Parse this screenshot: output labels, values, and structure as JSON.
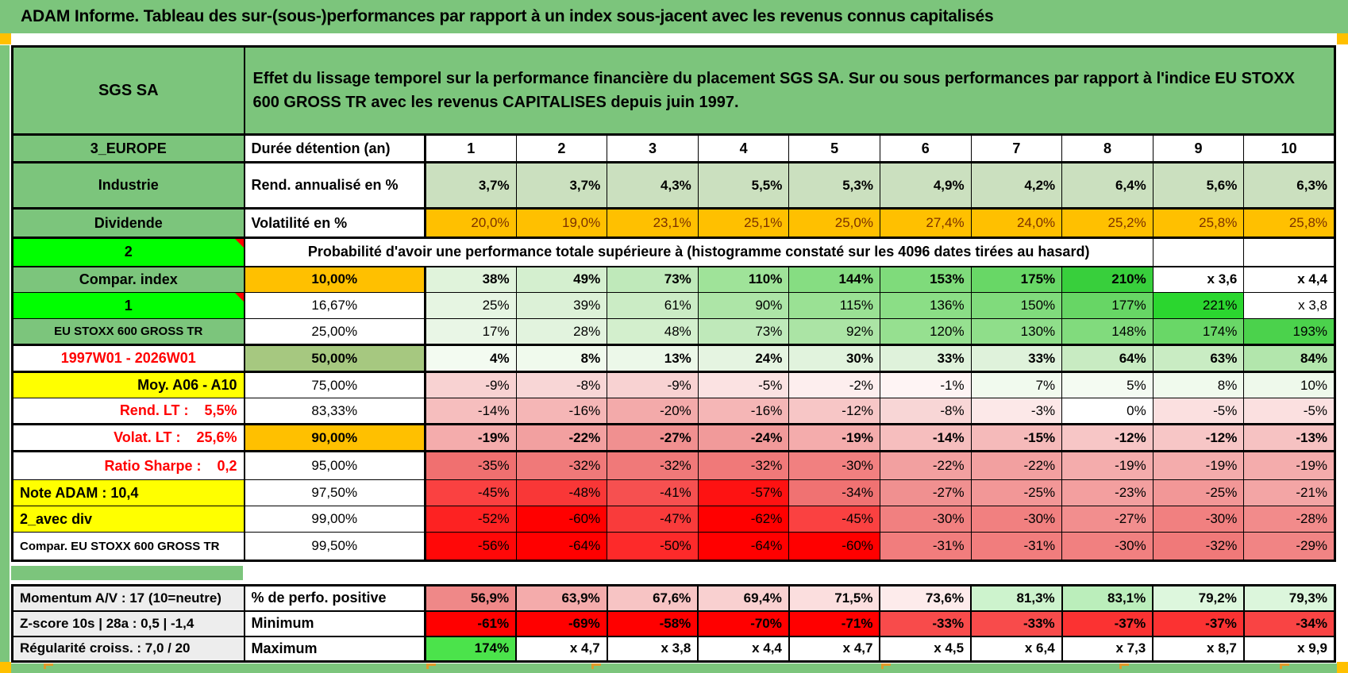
{
  "title": "ADAM Informe. Tableau des sur-(sous-)performances par rapport à un index sous-jacent avec les revenus connus capitalisés",
  "colors": {
    "table_green": "#7CC57C",
    "bright_green": "#00FF00",
    "orange": "#FFC000",
    "yellow": "#FFFF00",
    "sage_green": "#A6C880",
    "row_light_green": "#CBE0BF",
    "gray_label": "#EDEDED",
    "red_text": "#FF0000",
    "volat_text": "#7B3000",
    "pure_red": "#FF0000",
    "max_green": "#4BE34B",
    "marker_orange": "#FFC000"
  },
  "main_rows": [
    {
      "name": "header",
      "left": {
        "text": "SGS SA",
        "bg": "green",
        "fs": 20
      },
      "span": {
        "text": "Effet du lissage temporel sur la performance financière du placement SGS SA. Sur ou sous performances par rapport à l'indice EU STOXX 600 GROSS TR avec les revenus CAPITALISES depuis juin 1997.",
        "colspan": 11,
        "bg": "green",
        "align": "l",
        "fs": 20,
        "wrap": true
      }
    },
    {
      "name": "duree",
      "left": {
        "text": "3_EUROPE",
        "bg": "green"
      },
      "label": {
        "text": "Durée détention (an)",
        "align": "l",
        "fs": 18
      },
      "values": [
        "1",
        "2",
        "3",
        "4",
        "5",
        "6",
        "7",
        "8",
        "9",
        "10"
      ],
      "bg": [
        "#FFFFFF",
        "#FFFFFF",
        "#FFFFFF",
        "#FFFFFF",
        "#FFFFFF",
        "#FFFFFF",
        "#FFFFFF",
        "#FFFFFF",
        "#FFFFFF",
        "#FFFFFF"
      ],
      "bold": true,
      "cellAlign": "c",
      "cellFs": 18
    },
    {
      "name": "rend",
      "left": {
        "text": "Industrie",
        "bg": "green"
      },
      "label": {
        "text": "Rend. annualisé en %",
        "align": "l",
        "fs": 18
      },
      "values": [
        "3,7%",
        "3,7%",
        "4,3%",
        "5,5%",
        "5,3%",
        "4,9%",
        "4,2%",
        "6,4%",
        "5,6%",
        "6,3%"
      ],
      "bg": [
        "lightrow",
        "lightrow",
        "lightrow",
        "lightrow",
        "lightrow",
        "lightrow",
        "lightrow",
        "lightrow",
        "lightrow",
        "lightrow"
      ],
      "bold": true
    },
    {
      "name": "volat",
      "left": {
        "text": "Dividende",
        "bg": "green"
      },
      "label": {
        "text": "Volatilité en %",
        "align": "l",
        "fs": 18
      },
      "values": [
        "20,0%",
        "19,0%",
        "23,1%",
        "25,1%",
        "25,0%",
        "27,4%",
        "24,0%",
        "25,2%",
        "25,8%",
        "25,8%"
      ],
      "bg": [
        "orange",
        "orange",
        "orange",
        "orange",
        "orange",
        "orange",
        "orange",
        "orange",
        "orange",
        "orange"
      ],
      "bold": false,
      "fg": "#7B3000"
    },
    {
      "name": "prob",
      "left": {
        "text": "2",
        "bg": "bright",
        "marker": true
      },
      "span": {
        "text": "Probabilité d'avoir une performance totale supérieure à (histogramme constaté sur les 4096 dates tirées au hasard)",
        "colspan": 9,
        "align": "c",
        "fs": 18
      },
      "trail": 2
    },
    {
      "name": "p10",
      "left": {
        "text": "Compar. index",
        "bg": "green"
      },
      "label": {
        "text": "10,00%",
        "bg": "orange"
      },
      "values": [
        "38%",
        "49%",
        "73%",
        "110%",
        "144%",
        "153%",
        "175%",
        "210%",
        "x 3,6",
        "x 4,4"
      ],
      "bg": [
        "#E0F3DB",
        "#D4EFCF",
        "#BFE9BA",
        "#9FE399",
        "#86DD82",
        "#7FDB7B",
        "#68D766",
        "#38CF3C",
        "#FFFFFF",
        "#FFFFFF"
      ],
      "bold": true
    },
    {
      "name": "p16",
      "left": {
        "text": "1",
        "bg": "bright",
        "marker": true
      },
      "label": {
        "text": "16,67%",
        "bold": false
      },
      "values": [
        "25%",
        "39%",
        "61%",
        "90%",
        "115%",
        "136%",
        "150%",
        "177%",
        "221%",
        "x 3,8"
      ],
      "bg": [
        "#E6F5E2",
        "#DCF1D7",
        "#CBECC5",
        "#ADE5A7",
        "#9AE194",
        "#8BDE86",
        "#80DB7C",
        "#67D665",
        "#2BD62F",
        "#FFFFFF"
      ],
      "bold": false
    },
    {
      "name": "p25",
      "left": {
        "text": "EU STOXX 600 GROSS TR",
        "bg": "green",
        "fs": 15
      },
      "label": {
        "text": "25,00%",
        "bold": false
      },
      "values": [
        "17%",
        "28%",
        "48%",
        "73%",
        "92%",
        "120%",
        "130%",
        "148%",
        "174%",
        "193%"
      ],
      "bg": [
        "#E9F6E6",
        "#E2F3DE",
        "#D3EFCD",
        "#BFE9BA",
        "#ABE4A5",
        "#96E090",
        "#8FDE8A",
        "#81DB7D",
        "#69D767",
        "#4BD24C"
      ],
      "bold": false
    },
    {
      "name": "p50",
      "left": {
        "text": "1997W01 - 2026W01",
        "bg": "#FFFFFF",
        "fg": "#FF0000"
      },
      "label": {
        "text": "50,00%",
        "bg": "sage"
      },
      "values": [
        "4%",
        "8%",
        "13%",
        "24%",
        "30%",
        "33%",
        "33%",
        "64%",
        "63%",
        "84%"
      ],
      "bg": [
        "#F3FBF1",
        "#F0FAED",
        "#ECF8E9",
        "#E5F4E1",
        "#E1F3DD",
        "#DFF2DB",
        "#DFF2DB",
        "#C8EBC2",
        "#C9ECC3",
        "#B2E6AC"
      ],
      "bold": true
    },
    {
      "name": "p75",
      "left": {
        "text": "Moy. A06 - A10",
        "bg": "yellow",
        "align": "r"
      },
      "label": {
        "text": "75,00%",
        "bold": false
      },
      "values": [
        "-9%",
        "-8%",
        "-9%",
        "-5%",
        "-2%",
        "-1%",
        "7%",
        "5%",
        "8%",
        "10%"
      ],
      "bg": [
        "#F8D2D2",
        "#F8D6D6",
        "#F8D2D2",
        "#FBE2E2",
        "#FDEEEE",
        "#FEF4F4",
        "#F1FAEE",
        "#F4FBF2",
        "#F0FAED",
        "#EEF9EB"
      ],
      "bold": false
    },
    {
      "name": "p83",
      "left": {
        "text": "Rend. LT :    5,5%",
        "bg": "#FFFFFF",
        "fg": "#FF0000",
        "align": "r",
        "pre": true
      },
      "label": {
        "text": "83,33%",
        "bold": false
      },
      "values": [
        "-14%",
        "-16%",
        "-20%",
        "-16%",
        "-12%",
        "-8%",
        "-3%",
        "0%",
        "-5%",
        "-5%"
      ],
      "bg": [
        "#F6BEBE",
        "#F5B6B6",
        "#F3AAAA",
        "#F5B6B6",
        "#F7C6C6",
        "#F8D6D6",
        "#FCE8E8",
        "#FFFFFF",
        "#FBE0E0",
        "#FBE0E0"
      ],
      "bold": false
    },
    {
      "name": "p90",
      "left": {
        "text": "Volat. LT :    25,6%",
        "bg": "#FFFFFF",
        "fg": "#FF0000",
        "align": "r",
        "pre": true
      },
      "label": {
        "text": "90,00%",
        "bg": "orange"
      },
      "values": [
        "-19%",
        "-22%",
        "-27%",
        "-24%",
        "-19%",
        "-14%",
        "-15%",
        "-12%",
        "-12%",
        "-13%"
      ],
      "bg": [
        "#F4ACAC",
        "#F2A0A0",
        "#F09090",
        "#F19A9A",
        "#F4ACAC",
        "#F6BEBE",
        "#F5BABA",
        "#F7C6C6",
        "#F7C6C6",
        "#F6C2C2"
      ],
      "bold": true
    },
    {
      "name": "p95",
      "left": {
        "text": "Ratio Sharpe :    0,2",
        "bg": "#FFFFFF",
        "fg": "#FF0000",
        "align": "r",
        "pre": true
      },
      "label": {
        "text": "95,00%",
        "bold": false
      },
      "values": [
        "-35%",
        "-32%",
        "-32%",
        "-32%",
        "-30%",
        "-22%",
        "-22%",
        "-19%",
        "-19%",
        "-19%"
      ],
      "bg": [
        "#F07070",
        "#F07979",
        "#F07979",
        "#F07979",
        "#F18080",
        "#F2A0A0",
        "#F2A0A0",
        "#F4ACAC",
        "#F4ACAC",
        "#F4ACAC"
      ],
      "bold": false
    },
    {
      "name": "p97",
      "left": {
        "text": "Note ADAM : 10,4",
        "bg": "yellow",
        "align": "l"
      },
      "label": {
        "text": "97,50%",
        "bold": false
      },
      "values": [
        "-45%",
        "-48%",
        "-41%",
        "-57%",
        "-34%",
        "-27%",
        "-25%",
        "-23%",
        "-25%",
        "-21%"
      ],
      "bg": [
        "#FA4141",
        "#F93737",
        "#F65050",
        "#FE1212",
        "#F07272",
        "#F09090",
        "#F29797",
        "#F39F9F",
        "#F29797",
        "#F3A5A5"
      ],
      "bold": false
    },
    {
      "name": "p99",
      "left": {
        "text": "2_avec div",
        "bg": "yellow",
        "align": "l"
      },
      "label": {
        "text": "99,00%",
        "bold": false
      },
      "values": [
        "-52%",
        "-60%",
        "-47%",
        "-62%",
        "-45%",
        "-30%",
        "-30%",
        "-27%",
        "-30%",
        "-28%"
      ],
      "bg": [
        "#FD2222",
        "#FF0000",
        "#F93B3B",
        "#FF0000",
        "#FA4141",
        "#F18080",
        "#F18080",
        "#F28E8E",
        "#F18080",
        "#F28B8B"
      ],
      "bold": false
    },
    {
      "name": "p995",
      "left": {
        "text": "Compar. EU STOXX 600 GROSS TR",
        "bg": "#FFFFFF",
        "align": "l",
        "fs": 15
      },
      "label": {
        "text": "99,50%",
        "bold": false
      },
      "values": [
        "-56%",
        "-64%",
        "-50%",
        "-64%",
        "-60%",
        "-31%",
        "-31%",
        "-30%",
        "-32%",
        "-29%"
      ],
      "bg": [
        "#FF0808",
        "#FF0000",
        "#FD2A2A",
        "#FF0000",
        "#FF0000",
        "#F17D7D",
        "#F17D7D",
        "#F18080",
        "#F07979",
        "#F18484"
      ],
      "bold": false
    }
  ],
  "bottom_rows": [
    {
      "name": "perfo",
      "left": {
        "text": "Momentum A/V : 17 (10=neutre)",
        "bg": "gray",
        "align": "l",
        "fs": 17
      },
      "label": {
        "text": "% de perfo. positive",
        "align": "l",
        "fs": 18
      },
      "values": [
        "56,9%",
        "63,9%",
        "67,6%",
        "69,4%",
        "71,5%",
        "73,6%",
        "81,3%",
        "83,1%",
        "79,2%",
        "79,3%"
      ],
      "bg": [
        "#EF8888",
        "#F4ABAB",
        "#F7C4C4",
        "#F9D0D0",
        "#FBDEDE",
        "#FDEBEB",
        "#CDF3CD",
        "#BBEEBB",
        "#DDF7DD",
        "#DCF6DC"
      ],
      "bold": true
    },
    {
      "name": "min",
      "left": {
        "text": "Z-score 10s | 28a : 0,5 | -1,4",
        "bg": "gray",
        "align": "l",
        "fs": 17
      },
      "label": {
        "text": "Minimum",
        "align": "l",
        "fs": 18
      },
      "values": [
        "-61%",
        "-69%",
        "-58%",
        "-70%",
        "-71%",
        "-33%",
        "-33%",
        "-37%",
        "-37%",
        "-34%"
      ],
      "bg": [
        "#FF0000",
        "#FF0000",
        "#FF0000",
        "#FF0000",
        "#FF0000",
        "#F84B4B",
        "#F84B4B",
        "#FB3232",
        "#FB3232",
        "#F94444"
      ],
      "bold": true
    },
    {
      "name": "max",
      "left": {
        "text": "Régularité croiss. : 7,0 / 20",
        "bg": "gray",
        "align": "l",
        "fs": 17
      },
      "label": {
        "text": "Maximum",
        "align": "l",
        "fs": 18
      },
      "values": [
        "174%",
        "x 4,7",
        "x 3,8",
        "x 4,4",
        "x 4,7",
        "x 4,5",
        "x 6,4",
        "x 7,3",
        "x 8,7",
        "x 9,9"
      ],
      "bg": [
        "#4BE34B",
        "#FFFFFF",
        "#FFFFFF",
        "#FFFFFF",
        "#FFFFFF",
        "#FFFFFF",
        "#FFFFFF",
        "#FFFFFF",
        "#FFFFFF",
        "#FFFFFF"
      ],
      "bold": true
    }
  ]
}
